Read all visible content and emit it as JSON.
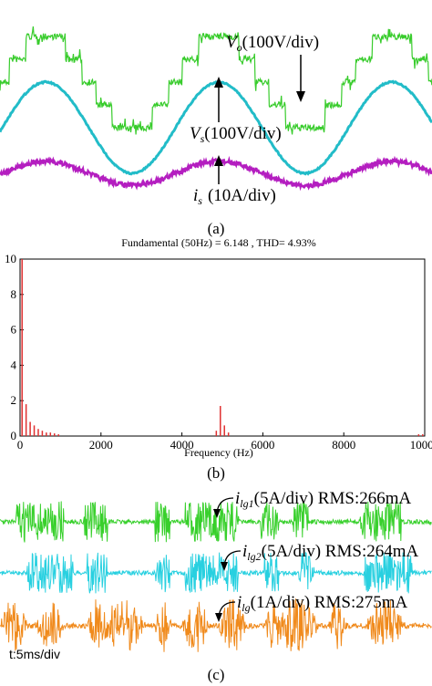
{
  "panel_a": {
    "vo_label": {
      "symbol": "V",
      "sub": "o",
      "text": "(100V/div)"
    },
    "vs_label": {
      "symbol": "V",
      "sub": "s",
      "text": "(100V/div)"
    },
    "is_label": {
      "symbol": "i",
      "sub": "s",
      "text": "(10A/div)"
    },
    "time_scale": "t:5ms/div",
    "caption": "(a)"
  },
  "chart_data": {
    "type": "bar",
    "title": "Fundamental (50Hz) = 6.148 , THD= 4.93%",
    "x_label": "Frequency (Hz)",
    "x": [
      50,
      150,
      250,
      350,
      450,
      550,
      650,
      750,
      850,
      950,
      4850,
      4950,
      5050,
      5150,
      9850,
      9950
    ],
    "values": [
      10,
      1.8,
      0.8,
      0.6,
      0.4,
      0.3,
      0.2,
      0.2,
      0.15,
      0.1,
      0.3,
      1.7,
      0.6,
      0.2,
      0.1,
      0.1
    ],
    "color": "#e03030",
    "xlim": [
      0,
      10000
    ],
    "xticks": [
      0,
      2000,
      4000,
      6000,
      8000,
      10000
    ],
    "ylim": [
      0,
      10
    ],
    "yticks": [
      0,
      2,
      4,
      6,
      8,
      10
    ],
    "grid": false,
    "caption": "(b)"
  },
  "panel_c": {
    "ilg1_label": {
      "symbol": "i",
      "sub": "lg1",
      "text": "(5A/div) RMS:266mA"
    },
    "ilg2_label": {
      "symbol": "i",
      "sub": "lg2",
      "text": "(5A/div) RMS:264mA"
    },
    "ilg_label": {
      "symbol": "i",
      "sub": "lg",
      "text": "(1A/div) RMS:275mA"
    },
    "time_scale": "t:5ms/div",
    "caption": "(c)"
  }
}
